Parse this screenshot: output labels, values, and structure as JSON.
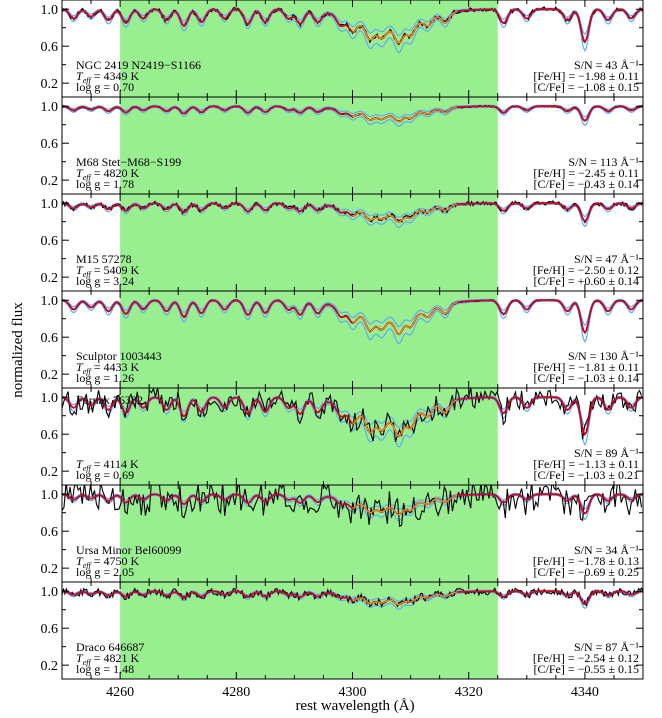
{
  "chart_data": {
    "type": "line",
    "xlabel": "rest wavelength (Å)",
    "ylabel": "normalized flux",
    "xlim": [
      4250,
      4350
    ],
    "ylim": [
      0.05,
      1.1
    ],
    "xticks": [
      "4260",
      "4280",
      "4300",
      "4320",
      "4340"
    ],
    "yticks": [
      "0.2",
      "0.6",
      "1.0"
    ],
    "shaded_region": [
      4260,
      4325
    ],
    "colors": {
      "observed": "#000000",
      "best_fit": "#d0021b",
      "best_fit_inner": "#f5a623",
      "upper_lower_bounds": "#5aaef0",
      "shade": "#99ee90"
    },
    "panels": [
      {
        "name": "NGC 2419 N2419−S1166",
        "teff": "Tₑₒₒ = 4349 K",
        "teff_label": "T",
        "teff_sub": "eff",
        "teff_value": " = 4349 K",
        "logg": "log g = 0.70",
        "sn": "S/N = 43 Å⁻¹",
        "feh": "[Fe/H] = −1.98 ± 0.11",
        "cfe": "[C/Fe] = −1.08 ± 0.15",
        "name_position": "bottom-left",
        "noise": 0.025,
        "depth": 1.0
      },
      {
        "name": "M68 Stet−M68−S199",
        "teff_label": "T",
        "teff_sub": "eff",
        "teff_value": " = 4820 K",
        "logg": "log g = 1.78",
        "sn": "S/N = 113 Å⁻¹",
        "feh": "[Fe/H] = −2.45 ± 0.11",
        "cfe": "[C/Fe] = −0.43 ± 0.14",
        "name_position": "bottom-left",
        "noise": 0.01,
        "depth": 0.45
      },
      {
        "name": "M15 57278",
        "teff_label": "T",
        "teff_sub": "eff",
        "teff_value": " = 5409 K",
        "logg": "log g = 3.24",
        "sn": "S/N = 47 Å⁻¹",
        "feh": "[Fe/H] = −2.50 ± 0.12",
        "cfe": "[C/Fe] = +0.60 ± 0.14",
        "name_position": "bottom-left",
        "noise": 0.025,
        "depth": 0.55
      },
      {
        "name": "Sculptor 1003443",
        "teff_label": "T",
        "teff_sub": "eff",
        "teff_value": " = 4433 K",
        "logg": "log g = 1.26",
        "sn": "S/N = 130 Å⁻¹",
        "feh": "[Fe/H] = −1.81 ± 0.11",
        "cfe": "[C/Fe] = −1.03 ± 0.14",
        "name_position": "bottom-left",
        "noise": 0.01,
        "depth": 1.0
      },
      {
        "name": "Fornax 76382",
        "teff_label": "T",
        "teff_sub": "eff",
        "teff_value": " = 4114 K",
        "logg": "log g = 0.69",
        "sn": "S/N = 89 Å⁻¹",
        "feh": "[Fe/H] = −1.13 ± 0.11",
        "cfe": "[C/Fe] = −1.03 ± 0.21",
        "name_position": "top-left",
        "noise": 0.12,
        "depth": 1.15
      },
      {
        "name": "Ursa Minor Bel60099",
        "teff_label": "T",
        "teff_sub": "eff",
        "teff_value": " = 4750 K",
        "logg": "log g = 2.05",
        "sn": "S/N = 34 Å⁻¹",
        "feh": "[Fe/H] = −1.78 ± 0.13",
        "cfe": "[C/Fe] = −0.69 ± 0.25",
        "name_position": "bottom-left",
        "noise": 0.18,
        "depth": 0.6
      },
      {
        "name": "Draco 646687",
        "teff_label": "T",
        "teff_sub": "eff",
        "teff_value": " = 4821 K",
        "logg": "log g = 1.48",
        "sn": "S/N = 87 Å⁻¹",
        "feh": "[Fe/H] = −2.54 ± 0.12",
        "cfe": "[C/Fe] = −0.55 ± 0.15",
        "name_position": "bottom-left",
        "noise": 0.04,
        "depth": 0.4
      }
    ]
  }
}
